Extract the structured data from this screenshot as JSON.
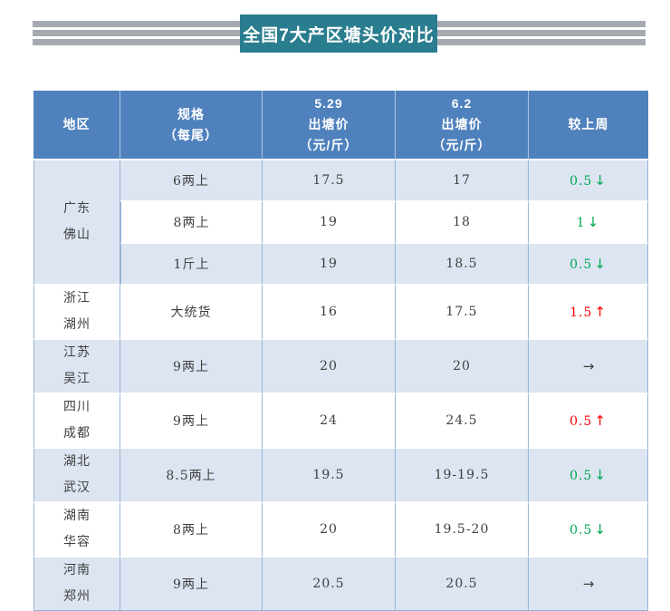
{
  "title": {
    "text": "全国7大产区塘头价对比"
  },
  "colors": {
    "title_teal": "#297D8E",
    "stripe_gray": "#A5A9B2",
    "header_blue": "#4F81BD",
    "row_alt_blue": "#DCE5F1",
    "border_blue": "#95B3D7",
    "up_red": "#FF0000",
    "down_green": "#00A651",
    "flat_dark": "#404040"
  },
  "table": {
    "columns": [
      {
        "id": "region",
        "lines": [
          "地区"
        ]
      },
      {
        "id": "spec",
        "lines": [
          "规格",
          "（每尾）"
        ]
      },
      {
        "id": "price_0529",
        "lines": [
          "5.29",
          "出塘价",
          "（元/斤）"
        ]
      },
      {
        "id": "price_0602",
        "lines": [
          "6.2",
          "出塘价",
          "（元/斤）"
        ]
      },
      {
        "id": "change",
        "lines": [
          "较上周"
        ]
      }
    ],
    "trend_glyphs": {
      "up": "↑",
      "down": "↓",
      "flat": "→"
    },
    "groups": [
      {
        "region_lines": [
          "广东",
          "佛山"
        ],
        "rows": [
          {
            "spec": "6两上",
            "price_0529": "17.5",
            "price_0602": "17",
            "change": {
              "value": "0.5",
              "trend": "down"
            }
          },
          {
            "spec": "8两上",
            "price_0529": "19",
            "price_0602": "18",
            "change": {
              "value": "1",
              "trend": "down"
            }
          },
          {
            "spec": "1斤上",
            "price_0529": "19",
            "price_0602": "18.5",
            "change": {
              "value": "0.5",
              "trend": "down"
            }
          }
        ]
      },
      {
        "region_lines": [
          "浙江",
          "湖州"
        ],
        "rows": [
          {
            "spec": "大统货",
            "price_0529": "16",
            "price_0602": "17.5",
            "change": {
              "value": "1.5",
              "trend": "up"
            }
          }
        ]
      },
      {
        "region_lines": [
          "江苏",
          "吴江"
        ],
        "rows": [
          {
            "spec": "9两上",
            "price_0529": "20",
            "price_0602": "20",
            "change": {
              "value": "",
              "trend": "flat"
            }
          }
        ]
      },
      {
        "region_lines": [
          "四川",
          "成都"
        ],
        "rows": [
          {
            "spec": "9两上",
            "price_0529": "24",
            "price_0602": "24.5",
            "change": {
              "value": "0.5",
              "trend": "up"
            }
          }
        ]
      },
      {
        "region_lines": [
          "湖北",
          "武汉"
        ],
        "rows": [
          {
            "spec": "8.5两上",
            "price_0529": "19.5",
            "price_0602": "19-19.5",
            "change": {
              "value": "0.5",
              "trend": "down"
            }
          }
        ]
      },
      {
        "region_lines": [
          "湖南",
          "华容"
        ],
        "rows": [
          {
            "spec": "8两上",
            "price_0529": "20",
            "price_0602": "19.5-20",
            "change": {
              "value": "0.5",
              "trend": "down"
            }
          }
        ]
      },
      {
        "region_lines": [
          "河南",
          "郑州"
        ],
        "rows": [
          {
            "spec": "9两上",
            "price_0529": "20.5",
            "price_0602": "20.5",
            "change": {
              "value": "",
              "trend": "flat"
            }
          }
        ]
      }
    ]
  },
  "chart_data": {
    "type": "table",
    "title": "全国7大产区塘头价对比",
    "columns": [
      "地区",
      "规格（每尾）",
      "5.29 出塘价（元/斤）",
      "6.2 出塘价（元/斤）",
      "较上周"
    ],
    "rows": [
      [
        "广东佛山",
        "6两上",
        "17.5",
        "17",
        "0.5↓"
      ],
      [
        "广东佛山",
        "8两上",
        "19",
        "18",
        "1↓"
      ],
      [
        "广东佛山",
        "1斤上",
        "19",
        "18.5",
        "0.5↓"
      ],
      [
        "浙江湖州",
        "大统货",
        "16",
        "17.5",
        "1.5↑"
      ],
      [
        "江苏吴江",
        "9两上",
        "20",
        "20",
        "→"
      ],
      [
        "四川成都",
        "9两上",
        "24",
        "24.5",
        "0.5↑"
      ],
      [
        "湖北武汉",
        "8.5两上",
        "19.5",
        "19-19.5",
        "0.5↓"
      ],
      [
        "湖南华容",
        "8两上",
        "20",
        "19.5-20",
        "0.5↓"
      ],
      [
        "河南郑州",
        "9两上",
        "20.5",
        "20.5",
        "→"
      ]
    ]
  }
}
